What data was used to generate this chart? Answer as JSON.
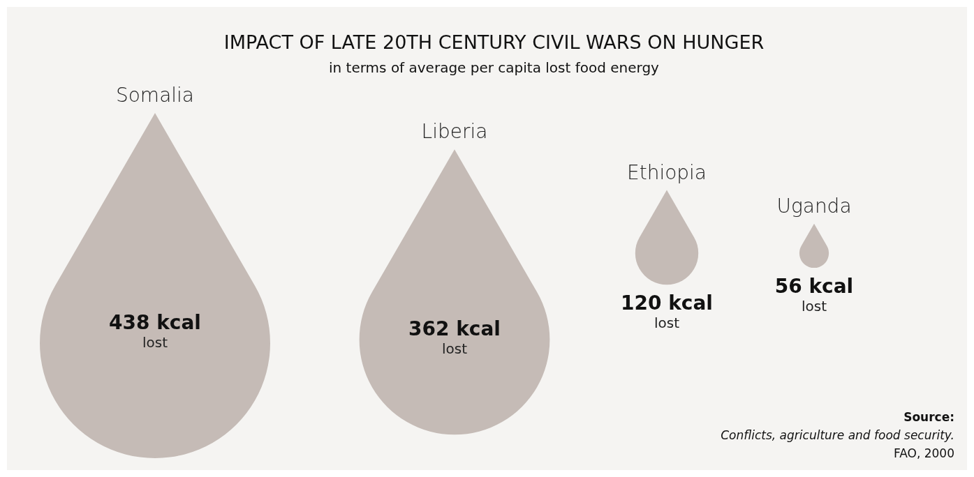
{
  "chart_data": {
    "type": "other",
    "title": "IMPACT OF LATE 20TH CENTURY CIVIL WARS ON HUNGER",
    "subtitle": "in terms of average per capita lost food energy",
    "categories": [
      "Somalia",
      "Liberia",
      "Ethiopia",
      "Uganda"
    ],
    "values": [
      438,
      362,
      120,
      56
    ],
    "value_labels": [
      "438 kcal",
      "362 kcal",
      "120 kcal",
      "56 kcal"
    ],
    "color": "#c5bbb6",
    "annotations": [
      {
        "text": "lost",
        "x": "Somalia"
      },
      {
        "text": "lost",
        "x": "Liberia"
      },
      {
        "text": "lost",
        "x": "Ethiopia"
      },
      {
        "text": "lost",
        "x": "Uganda"
      },
      "Source:",
      "Conflicts, agriculture and food security.",
      "FAO, 2000"
    ]
  }
}
